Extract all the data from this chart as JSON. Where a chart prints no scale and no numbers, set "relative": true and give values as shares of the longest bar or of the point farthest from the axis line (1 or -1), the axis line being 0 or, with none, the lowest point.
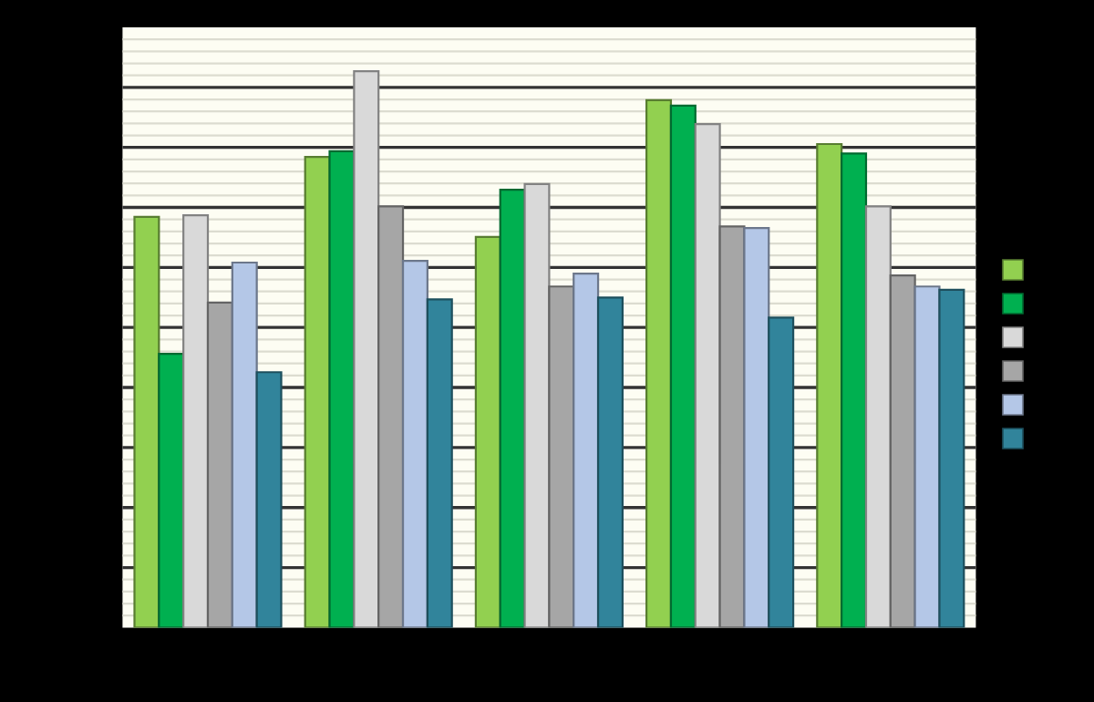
{
  "chart_data": {
    "type": "bar",
    "relative": true,
    "categories": [
      null,
      null,
      null,
      null,
      null
    ],
    "series": [
      {
        "color": "#92d050",
        "values": [
          0.738,
          0.846,
          0.702,
          0.948,
          0.869
        ]
      },
      {
        "color": "#00b050",
        "values": [
          0.492,
          0.856,
          0.787,
          0.938,
          0.852
        ]
      },
      {
        "color": "#d9d9d9",
        "values": [
          0.741,
          1,
          0.797,
          0.905,
          0.757
        ]
      },
      {
        "color": "#a6a6a6",
        "values": [
          0.584,
          0.757,
          0.613,
          0.721,
          0.633
        ]
      },
      {
        "color": "#b4c7e7",
        "values": [
          0.656,
          0.659,
          0.636,
          0.718,
          0.613
        ]
      },
      {
        "color": "#31849b",
        "values": [
          0.459,
          0.59,
          0.593,
          0.557,
          0.607
        ]
      }
    ],
    "grid": "y"
  }
}
